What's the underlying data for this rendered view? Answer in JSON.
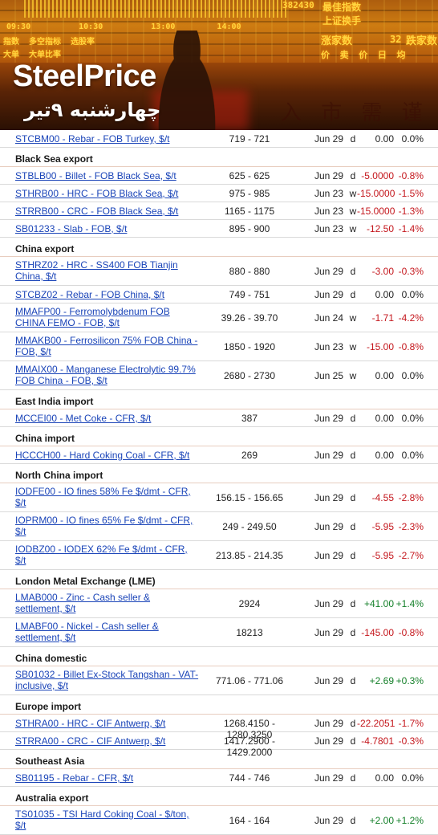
{
  "banner": {
    "brand": "SteelPrice",
    "date_fa": "چهارشنبه ۹تیر",
    "screen_number": "382430",
    "screen_title_1": "最佳指数",
    "screen_title_2": "上证换手",
    "screen_times": [
      "09:30",
      "10:30",
      "13:00",
      "14:00"
    ],
    "screen_row_1": [
      "指数",
      "多空指标",
      "选股率"
    ],
    "screen_row_2": [
      "大单",
      "大单比率"
    ],
    "screen_label_3": "涨家数",
    "screen_label_3_value": "32",
    "screen_label_3b": "跌家数",
    "screen_row_4": [
      "价",
      "卖",
      "价",
      "日",
      "均"
    ],
    "bg_chars": "入 市 需 谨 慎"
  },
  "rows": [
    {
      "type": "item",
      "name": "STCBM00 - Rebar - FOB Turkey, $/t",
      "range": "719 - 721",
      "date": "Jun 29",
      "freq": "d",
      "change": "0.00",
      "pct": "0.0%",
      "sign": "zero"
    },
    {
      "type": "section",
      "title": "Black Sea export"
    },
    {
      "type": "item",
      "name": "STBLB00 - Billet - FOB Black Sea, $/t",
      "range": "625 - 625",
      "date": "Jun 29",
      "freq": "d",
      "change": "-5.0000",
      "pct": "-0.8%",
      "sign": "neg"
    },
    {
      "type": "item",
      "name": "STHRB00 - HRC - FOB Black Sea, $/t",
      "range": "975 - 985",
      "date": "Jun 23",
      "freq": "w",
      "change": "-15.0000",
      "pct": "-1.5%",
      "sign": "neg"
    },
    {
      "type": "item",
      "name": "STRRB00 - CRC - FOB Black Sea, $/t",
      "range": "1165 - 1175",
      "date": "Jun 23",
      "freq": "w",
      "change": "-15.0000",
      "pct": "-1.3%",
      "sign": "neg"
    },
    {
      "type": "item",
      "name": "SB01233 - Slab - FOB, $/t",
      "range": "895 - 900",
      "date": "Jun 23",
      "freq": "w",
      "change": "-12.50",
      "pct": "-1.4%",
      "sign": "neg"
    },
    {
      "type": "section",
      "title": "China export"
    },
    {
      "type": "item",
      "name": "STHRZ02 - HRC - SS400 FOB Tianjin China, $/t",
      "range": "880 - 880",
      "date": "Jun 29",
      "freq": "d",
      "change": "-3.00",
      "pct": "-0.3%",
      "sign": "neg"
    },
    {
      "type": "item",
      "name": "STCBZ02 - Rebar - FOB China, $/t",
      "range": "749 - 751",
      "date": "Jun 29",
      "freq": "d",
      "change": "0.00",
      "pct": "0.0%",
      "sign": "zero"
    },
    {
      "type": "item",
      "name": "MMAFP00 - Ferromolybdenum FOB CHINA FEMO - FOB, $/t",
      "range": "39.26 - 39.70",
      "date": "Jun 24",
      "freq": "w",
      "change": "-1.71",
      "pct": "-4.2%",
      "sign": "neg"
    },
    {
      "type": "item",
      "name": "MMAKB00 - Ferrosilicon 75% FOB China - FOB, $/t",
      "range": "1850 - 1920",
      "date": "Jun 23",
      "freq": "w",
      "change": "-15.00",
      "pct": "-0.8%",
      "sign": "neg"
    },
    {
      "type": "item",
      "name": "MMAIX00 - Manganese Electrolytic 99.7% FOB China - FOB, $/t",
      "range": "2680 - 2730",
      "date": "Jun 25",
      "freq": "w",
      "change": "0.00",
      "pct": "0.0%",
      "sign": "zero"
    },
    {
      "type": "section",
      "title": "East India import"
    },
    {
      "type": "item",
      "name": "MCCEI00 - Met Coke - CFR, $/t",
      "range": "387",
      "date": "Jun 29",
      "freq": "d",
      "change": "0.00",
      "pct": "0.0%",
      "sign": "zero"
    },
    {
      "type": "section",
      "title": "China import"
    },
    {
      "type": "item",
      "name": "HCCCH00 - Hard Coking Coal - CFR, $/t",
      "range": "269",
      "date": "Jun 29",
      "freq": "d",
      "change": "0.00",
      "pct": "0.0%",
      "sign": "zero"
    },
    {
      "type": "section",
      "title": "North China import"
    },
    {
      "type": "item",
      "name": "IODFE00 - IO fines 58% Fe $/dmt - CFR, $/t",
      "range": "156.15 - 156.65",
      "date": "Jun 29",
      "freq": "d",
      "change": "-4.55",
      "pct": "-2.8%",
      "sign": "neg"
    },
    {
      "type": "item",
      "name": "IOPRM00 - IO fines 65% Fe $/dmt - CFR, $/t",
      "range": "249 - 249.50",
      "date": "Jun 29",
      "freq": "d",
      "change": "-5.95",
      "pct": "-2.3%",
      "sign": "neg"
    },
    {
      "type": "item",
      "name": "IODBZ00 - IODEX 62% Fe $/dmt - CFR, $/t",
      "range": "213.85 - 214.35",
      "date": "Jun 29",
      "freq": "d",
      "change": "-5.95",
      "pct": "-2.7%",
      "sign": "neg"
    },
    {
      "type": "section",
      "title": "London Metal Exchange (LME)"
    },
    {
      "type": "item",
      "name": "LMAB000 - Zinc - Cash seller & settlement, $/t",
      "range": "2924",
      "date": "Jun 29",
      "freq": "d",
      "change": "+41.00",
      "pct": "+1.4%",
      "sign": "pos"
    },
    {
      "type": "item",
      "name": "LMABF00 - Nickel - Cash seller & settlement, $/t",
      "range": "18213",
      "date": "Jun 29",
      "freq": "d",
      "change": "-145.00",
      "pct": "-0.8%",
      "sign": "neg"
    },
    {
      "type": "section",
      "title": "China domestic"
    },
    {
      "type": "item",
      "name": "SB01032 - Billet Ex-Stock Tangshan - VAT-inclusive, $/t",
      "range": "771.06 - 771.06",
      "date": "Jun 29",
      "freq": "d",
      "change": "+2.69",
      "pct": "+0.3%",
      "sign": "pos"
    },
    {
      "type": "section",
      "title": "Europe import"
    },
    {
      "type": "item",
      "name": "STHRA00 - HRC - CIF Antwerp, $/t",
      "range": "1268.4150 - 1280.3250",
      "date": "Jun 29",
      "freq": "d",
      "change": "-22.2051",
      "pct": "-1.7%",
      "sign": "neg"
    },
    {
      "type": "item",
      "name": "STRRA00 - CRC - CIF Antwerp, $/t",
      "range": "1417.2900 - 1429.2000",
      "date": "Jun 29",
      "freq": "d",
      "change": "-4.7801",
      "pct": "-0.3%",
      "sign": "neg"
    },
    {
      "type": "section",
      "title": "Southeast Asia"
    },
    {
      "type": "item",
      "name": "SB01195 - Rebar - CFR, $/t",
      "range": "744 - 746",
      "date": "Jun 29",
      "freq": "d",
      "change": "0.00",
      "pct": "0.0%",
      "sign": "zero"
    },
    {
      "type": "section",
      "title": "Australia export"
    },
    {
      "type": "item",
      "name": "TS01035 - TSI Hard Coking Coal - $/ton, $/t",
      "range": "164 - 164",
      "date": "Jun 29",
      "freq": "d",
      "change": "+2.00",
      "pct": "+1.2%",
      "sign": "pos"
    }
  ]
}
